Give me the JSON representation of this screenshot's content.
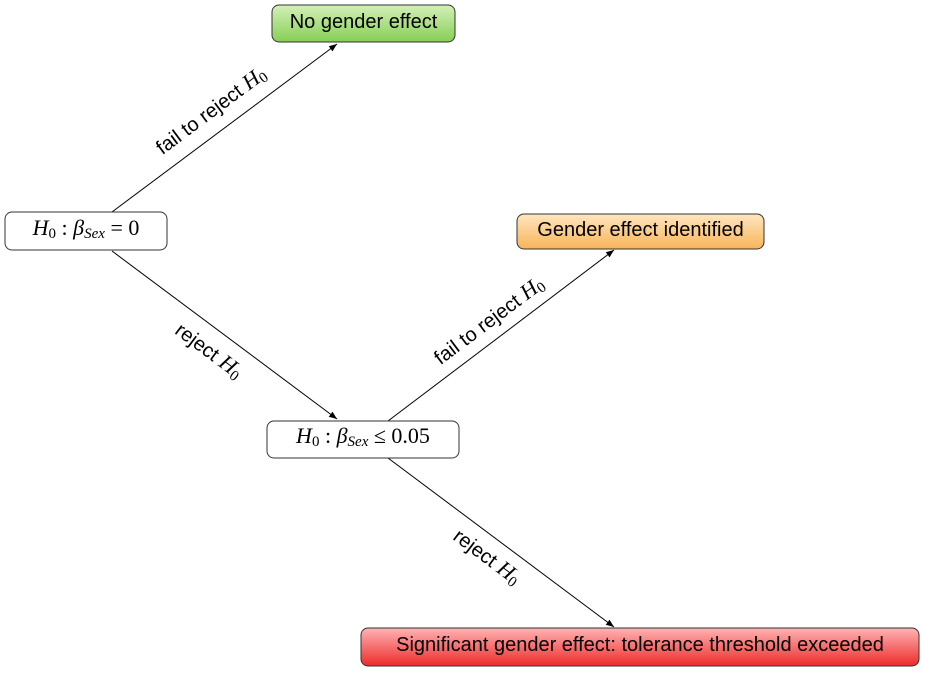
{
  "nodes": [
    {
      "label": [
        "No gender effect"
      ]
    },
    {
      "label": [
        "H",
        "0",
        " : ",
        "β",
        "Sex",
        " = 0"
      ]
    },
    {
      "label": [
        "Gender effect identified"
      ]
    },
    {
      "label": [
        "H",
        "0",
        " : ",
        "β",
        "Sex",
        " ≤ 0.05"
      ]
    },
    {
      "label": [
        "Significant gender effect: tolerance threshold exceeded"
      ]
    }
  ],
  "edges": [
    {
      "label": [
        "fail to reject ",
        "H",
        "0"
      ]
    },
    {
      "label": [
        "reject ",
        "H",
        "0"
      ]
    },
    {
      "label": [
        "fail to reject ",
        "H",
        "0"
      ]
    },
    {
      "label": [
        "reject ",
        "H",
        "0"
      ]
    }
  ]
}
